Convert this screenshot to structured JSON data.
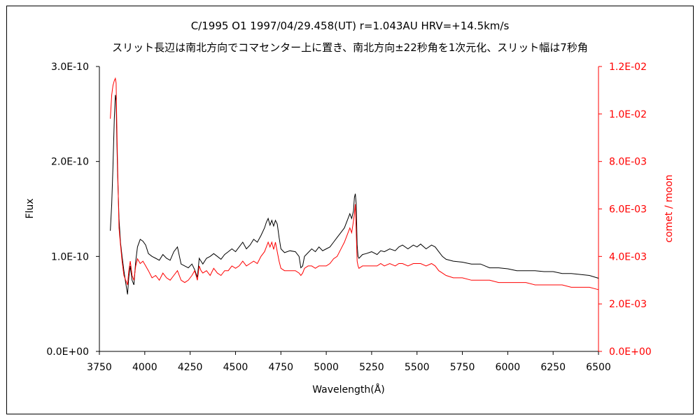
{
  "chart_data": {
    "type": "line",
    "title": "C/1995 O1    1997/04/29.458(UT)    r=1.043AU    HRV=+14.5km/s",
    "subtitle": "スリット長辺は南北方向でコマセンター上に置き、南北方向±22秒角を1次元化、スリット幅は7秒角",
    "xlabel": "Wavelength(Å)",
    "ylabel": "Flux",
    "y2label": "comet / moon",
    "xlim": [
      3750,
      6500
    ],
    "ylim": [
      0,
      3e-10
    ],
    "y2lim": [
      0,
      0.012
    ],
    "x_ticks": [
      "3750",
      "4000",
      "4250",
      "4500",
      "4750",
      "5000",
      "5250",
      "5500",
      "5750",
      "6000",
      "6250",
      "6500"
    ],
    "y_ticks": [
      "0.0E+00",
      "1.0E-10",
      "2.0E-10",
      "3.0E-10"
    ],
    "y2_ticks": [
      "0.0E+00",
      "2.0E-03",
      "4.0E-03",
      "6.0E-03",
      "8.0E-03",
      "1.0E-02",
      "1.2E-02"
    ],
    "grid": false,
    "legend": "none",
    "colors": {
      "flux": "#000000",
      "ratio": "#ff0000"
    },
    "series": [
      {
        "axis": "left",
        "color": "#000000",
        "x": [
          3810,
          3818,
          3825,
          3832,
          3838,
          3842,
          3845,
          3850,
          3858,
          3866,
          3875,
          3885,
          3895,
          3905,
          3912,
          3920,
          3930,
          3940,
          3950,
          3960,
          3975,
          3990,
          4005,
          4020,
          4040,
          4060,
          4080,
          4100,
          4120,
          4140,
          4160,
          4180,
          4200,
          4220,
          4240,
          4260,
          4275,
          4290,
          4300,
          4310,
          4320,
          4340,
          4360,
          4380,
          4400,
          4420,
          4440,
          4460,
          4480,
          4500,
          4520,
          4540,
          4560,
          4580,
          4600,
          4620,
          4640,
          4660,
          4670,
          4680,
          4690,
          4700,
          4710,
          4720,
          4730,
          4740,
          4750,
          4770,
          4800,
          4830,
          4850,
          4860,
          4870,
          4880,
          4900,
          4920,
          4940,
          4960,
          4980,
          5000,
          5020,
          5040,
          5060,
          5080,
          5100,
          5120,
          5130,
          5140,
          5150,
          5155,
          5160,
          5165,
          5170,
          5175,
          5180,
          5200,
          5220,
          5250,
          5280,
          5300,
          5320,
          5350,
          5380,
          5400,
          5420,
          5450,
          5480,
          5500,
          5520,
          5550,
          5580,
          5600,
          5620,
          5640,
          5660,
          5700,
          5750,
          5800,
          5850,
          5900,
          5950,
          6000,
          6050,
          6100,
          6150,
          6200,
          6250,
          6300,
          6350,
          6400,
          6450,
          6500
        ],
        "y": [
          1.27e-10,
          1.55e-10,
          1.95e-10,
          2.45e-10,
          2.7e-10,
          2.64e-10,
          2.35e-10,
          1.9e-10,
          1.4e-10,
          1.15e-10,
          1e-10,
          8.5e-11,
          7.2e-11,
          6e-11,
          7.8e-11,
          9e-11,
          7.5e-11,
          7e-11,
          9.5e-11,
          1.1e-10,
          1.18e-10,
          1.16e-10,
          1.12e-10,
          1.03e-10,
          1e-10,
          9.8e-11,
          9.6e-11,
          1.02e-10,
          9.8e-11,
          9.6e-11,
          1.05e-10,
          1.1e-10,
          9.2e-11,
          9e-11,
          8.8e-11,
          9.2e-11,
          8.6e-11,
          7.8e-11,
          9.8e-11,
          9.5e-11,
          9.2e-11,
          9.8e-11,
          1e-10,
          1.03e-10,
          1e-10,
          9.7e-11,
          1.02e-10,
          1.05e-10,
          1.08e-10,
          1.05e-10,
          1.1e-10,
          1.15e-10,
          1.08e-10,
          1.12e-10,
          1.18e-10,
          1.15e-10,
          1.22e-10,
          1.3e-10,
          1.36e-10,
          1.4e-10,
          1.33e-10,
          1.38e-10,
          1.32e-10,
          1.38e-10,
          1.34e-10,
          1.2e-10,
          1.08e-10,
          1.04e-10,
          1.06e-10,
          1.05e-10,
          1e-10,
          8.8e-11,
          9e-11,
          1e-10,
          1.04e-10,
          1.08e-10,
          1.05e-10,
          1.1e-10,
          1.06e-10,
          1.08e-10,
          1.1e-10,
          1.15e-10,
          1.2e-10,
          1.25e-10,
          1.3e-10,
          1.4e-10,
          1.45e-10,
          1.4e-10,
          1.48e-10,
          1.62e-10,
          1.66e-10,
          1.55e-10,
          1.12e-10,
          1e-10,
          9.8e-11,
          1.02e-10,
          1.03e-10,
          1.05e-10,
          1.02e-10,
          1.06e-10,
          1.05e-10,
          1.08e-10,
          1.06e-10,
          1.1e-10,
          1.12e-10,
          1.08e-10,
          1.12e-10,
          1.1e-10,
          1.13e-10,
          1.08e-10,
          1.12e-10,
          1.1e-10,
          1.05e-10,
          1e-10,
          9.7e-11,
          9.5e-11,
          9.4e-11,
          9.2e-11,
          9.2e-11,
          8.8e-11,
          8.8e-11,
          8.7e-11,
          8.5e-11,
          8.5e-11,
          8.5e-11,
          8.4e-11,
          8.4e-11,
          8.2e-11,
          8.2e-11,
          8.1e-11,
          8e-11,
          7.7e-11
        ]
      },
      {
        "axis": "right",
        "color": "#ff0000",
        "x": [
          3810,
          3818,
          3825,
          3832,
          3838,
          3842,
          3845,
          3850,
          3858,
          3866,
          3875,
          3885,
          3895,
          3905,
          3912,
          3920,
          3930,
          3940,
          3950,
          3960,
          3975,
          3990,
          4005,
          4020,
          4040,
          4060,
          4080,
          4100,
          4120,
          4140,
          4160,
          4180,
          4200,
          4220,
          4240,
          4260,
          4275,
          4290,
          4300,
          4310,
          4320,
          4340,
          4360,
          4380,
          4400,
          4420,
          4440,
          4460,
          4480,
          4500,
          4520,
          4540,
          4560,
          4580,
          4600,
          4620,
          4640,
          4660,
          4670,
          4680,
          4690,
          4700,
          4710,
          4720,
          4730,
          4740,
          4750,
          4770,
          4800,
          4830,
          4850,
          4860,
          4870,
          4880,
          4900,
          4920,
          4940,
          4960,
          4980,
          5000,
          5020,
          5040,
          5060,
          5080,
          5100,
          5120,
          5130,
          5140,
          5150,
          5155,
          5160,
          5165,
          5170,
          5175,
          5180,
          5200,
          5220,
          5250,
          5280,
          5300,
          5320,
          5350,
          5380,
          5400,
          5420,
          5450,
          5480,
          5500,
          5520,
          5550,
          5580,
          5600,
          5620,
          5640,
          5660,
          5700,
          5750,
          5800,
          5850,
          5900,
          5950,
          6000,
          6050,
          6100,
          6150,
          6200,
          6250,
          6300,
          6350,
          6400,
          6450,
          6500
        ],
        "y": [
          0.0098,
          0.0108,
          0.0112,
          0.0114,
          0.0115,
          0.0113,
          0.01,
          0.008,
          0.0052,
          0.0045,
          0.0038,
          0.0032,
          0.003,
          0.0028,
          0.0034,
          0.0038,
          0.0032,
          0.003,
          0.0036,
          0.0039,
          0.0037,
          0.0038,
          0.0036,
          0.0034,
          0.0031,
          0.0032,
          0.003,
          0.0033,
          0.0031,
          0.003,
          0.0032,
          0.0034,
          0.003,
          0.0029,
          0.003,
          0.0032,
          0.0034,
          0.003,
          0.0036,
          0.0034,
          0.0033,
          0.0034,
          0.0032,
          0.0035,
          0.0033,
          0.0032,
          0.0034,
          0.0034,
          0.0036,
          0.0035,
          0.0036,
          0.0038,
          0.0036,
          0.0037,
          0.0038,
          0.0037,
          0.004,
          0.0042,
          0.0044,
          0.0046,
          0.0044,
          0.0046,
          0.0043,
          0.0046,
          0.0042,
          0.0038,
          0.0035,
          0.0034,
          0.0034,
          0.0034,
          0.0033,
          0.0032,
          0.0033,
          0.0035,
          0.0036,
          0.0036,
          0.0035,
          0.0036,
          0.0036,
          0.0036,
          0.0037,
          0.0039,
          0.004,
          0.0043,
          0.0046,
          0.005,
          0.0052,
          0.005,
          0.0055,
          0.0058,
          0.0062,
          0.005,
          0.0038,
          0.0036,
          0.0035,
          0.0036,
          0.0036,
          0.0036,
          0.0036,
          0.0037,
          0.0036,
          0.0037,
          0.0036,
          0.0037,
          0.0037,
          0.0036,
          0.0037,
          0.0037,
          0.0037,
          0.0036,
          0.0037,
          0.0036,
          0.0034,
          0.0033,
          0.0032,
          0.0031,
          0.0031,
          0.003,
          0.003,
          0.003,
          0.0029,
          0.0029,
          0.0029,
          0.0029,
          0.0028,
          0.0028,
          0.0028,
          0.0028,
          0.0027,
          0.0027,
          0.0027,
          0.0026
        ]
      }
    ]
  }
}
